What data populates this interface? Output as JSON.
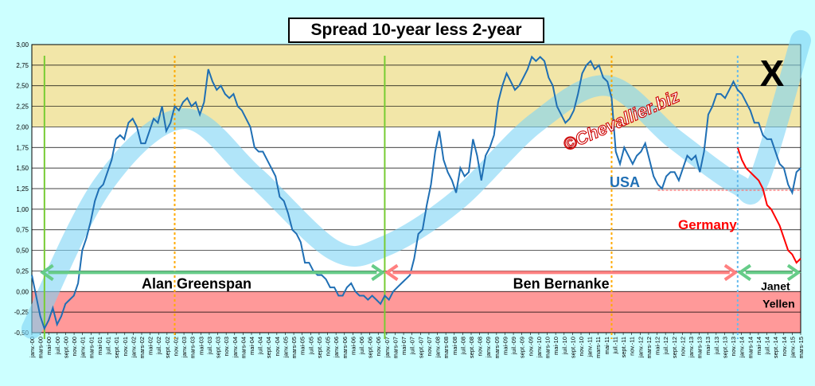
{
  "chart_data": {
    "type": "line",
    "title": "Spread 10-year less 2-year",
    "ylim": [
      -0.5,
      3.0
    ],
    "yticks": [
      "3,00",
      "2,75",
      "2,50",
      "2,25",
      "2,00",
      "1,75",
      "1,50",
      "1,25",
      "1,00",
      "0,75",
      "0,50",
      "0,25",
      "0,00",
      "-0,25",
      "-0,50"
    ],
    "ytick_values": [
      3.0,
      2.75,
      2.5,
      2.25,
      2.0,
      1.75,
      1.5,
      1.25,
      1.0,
      0.75,
      0.5,
      0.25,
      0.0,
      -0.25,
      -0.5
    ],
    "bands": [
      {
        "from": 2.0,
        "to": 3.0,
        "color": "#f2e6a8"
      },
      {
        "from": 0.0,
        "to": -0.5,
        "color": "#ff9999"
      }
    ],
    "xticks": [
      "janv.-00",
      "mars-00",
      "mai-00",
      "juil.-00",
      "sept.-00",
      "nov.-00",
      "janv.-01",
      "mars-01",
      "mai-01",
      "juil.-01",
      "sept.-01",
      "nov.-01",
      "janv.-02",
      "mars-02",
      "mai-02",
      "juil.-02",
      "sept.-02",
      "nov.-02",
      "janv.-03",
      "mars-03",
      "mai-03",
      "juil.-03",
      "sept.-03",
      "nov.-03",
      "janv.-04",
      "mars-04",
      "mai-04",
      "juil.-04",
      "sept.-04",
      "nov.-04",
      "janv.-05",
      "mars-05",
      "mai-05",
      "juil.-05",
      "sept.-05",
      "nov.-05",
      "janv.-06",
      "mars-06",
      "mai-06",
      "juil.-06",
      "sept.-06",
      "nov.-06",
      "janv.-07",
      "mars-07",
      "mai-07",
      "juil.-07",
      "sept.-07",
      "nov.-07",
      "janv.-08",
      "mars-08",
      "mai-08",
      "juil.-08",
      "sept.-08",
      "nov.-08",
      "janv.-09",
      "mars-09",
      "mai-09",
      "juil.-09",
      "sept.-09",
      "nov.-09",
      "janv.-10",
      "mars-10",
      "mai-10",
      "juil.-10",
      "sept.-10",
      "nov.-10",
      "janv.-11",
      "mars-11",
      "mai-11",
      "juil.-11",
      "sept.-11",
      "nov.-11",
      "janv.-12",
      "mars-12",
      "mai-12",
      "juil.-12",
      "sept.-12",
      "nov.-12",
      "janv.-13",
      "mars-13",
      "mai-13",
      "juil.-13",
      "sept.-13",
      "nov.-13",
      "janv.-14",
      "mars-14",
      "mai-14",
      "juil.-14",
      "sept.-14",
      "nov.-14",
      "janv.-15",
      "mars-15"
    ],
    "series": [
      {
        "name": "USA",
        "color": "#1f6fb4",
        "label_color": "#1f6fb4",
        "points": [
          [
            "2000-01",
            0.2
          ],
          [
            "2000-02",
            -0.05
          ],
          [
            "2000-03",
            -0.3
          ],
          [
            "2000-04",
            -0.45
          ],
          [
            "2000-05",
            -0.35
          ],
          [
            "2000-06",
            -0.2
          ],
          [
            "2000-07",
            -0.4
          ],
          [
            "2000-08",
            -0.3
          ],
          [
            "2000-09",
            -0.15
          ],
          [
            "2000-10",
            -0.1
          ],
          [
            "2000-11",
            -0.05
          ],
          [
            "2000-12",
            0.1
          ],
          [
            "2001-01",
            0.5
          ],
          [
            "2001-02",
            0.65
          ],
          [
            "2001-03",
            0.85
          ],
          [
            "2001-04",
            1.1
          ],
          [
            "2001-05",
            1.25
          ],
          [
            "2001-06",
            1.3
          ],
          [
            "2001-07",
            1.45
          ],
          [
            "2001-08",
            1.6
          ],
          [
            "2001-09",
            1.85
          ],
          [
            "2001-10",
            1.9
          ],
          [
            "2001-11",
            1.85
          ],
          [
            "2001-12",
            2.05
          ],
          [
            "2002-01",
            2.1
          ],
          [
            "2002-02",
            2.0
          ],
          [
            "2002-03",
            1.8
          ],
          [
            "2002-04",
            1.8
          ],
          [
            "2002-05",
            1.95
          ],
          [
            "2002-06",
            2.1
          ],
          [
            "2002-07",
            2.05
          ],
          [
            "2002-08",
            2.25
          ],
          [
            "2002-09",
            1.95
          ],
          [
            "2002-10",
            2.05
          ],
          [
            "2002-11",
            2.25
          ],
          [
            "2002-12",
            2.2
          ],
          [
            "2003-01",
            2.3
          ],
          [
            "2003-02",
            2.35
          ],
          [
            "2003-03",
            2.25
          ],
          [
            "2003-04",
            2.3
          ],
          [
            "2003-05",
            2.15
          ],
          [
            "2003-06",
            2.3
          ],
          [
            "2003-07",
            2.7
          ],
          [
            "2003-08",
            2.55
          ],
          [
            "2003-09",
            2.45
          ],
          [
            "2003-10",
            2.5
          ],
          [
            "2003-11",
            2.4
          ],
          [
            "2003-12",
            2.35
          ],
          [
            "2004-01",
            2.4
          ],
          [
            "2004-02",
            2.25
          ],
          [
            "2004-03",
            2.2
          ],
          [
            "2004-04",
            2.1
          ],
          [
            "2004-05",
            2.0
          ],
          [
            "2004-06",
            1.75
          ],
          [
            "2004-07",
            1.7
          ],
          [
            "2004-08",
            1.7
          ],
          [
            "2004-09",
            1.6
          ],
          [
            "2004-10",
            1.5
          ],
          [
            "2004-11",
            1.4
          ],
          [
            "2004-12",
            1.15
          ],
          [
            "2005-01",
            1.1
          ],
          [
            "2005-02",
            0.95
          ],
          [
            "2005-03",
            0.75
          ],
          [
            "2005-04",
            0.7
          ],
          [
            "2005-05",
            0.6
          ],
          [
            "2005-06",
            0.35
          ],
          [
            "2005-07",
            0.35
          ],
          [
            "2005-08",
            0.25
          ],
          [
            "2005-09",
            0.2
          ],
          [
            "2005-10",
            0.2
          ],
          [
            "2005-11",
            0.15
          ],
          [
            "2005-12",
            0.05
          ],
          [
            "2006-01",
            0.05
          ],
          [
            "2006-02",
            -0.05
          ],
          [
            "2006-03",
            -0.05
          ],
          [
            "2006-04",
            0.05
          ],
          [
            "2006-05",
            0.1
          ],
          [
            "2006-06",
            0.0
          ],
          [
            "2006-07",
            -0.05
          ],
          [
            "2006-08",
            -0.05
          ],
          [
            "2006-09",
            -0.1
          ],
          [
            "2006-10",
            -0.05
          ],
          [
            "2006-11",
            -0.1
          ],
          [
            "2006-12",
            -0.15
          ],
          [
            "2007-01",
            -0.05
          ],
          [
            "2007-02",
            -0.1
          ],
          [
            "2007-03",
            0.0
          ],
          [
            "2007-04",
            0.05
          ],
          [
            "2007-05",
            0.1
          ],
          [
            "2007-06",
            0.15
          ],
          [
            "2007-07",
            0.2
          ],
          [
            "2007-08",
            0.4
          ],
          [
            "2007-09",
            0.7
          ],
          [
            "2007-10",
            0.75
          ],
          [
            "2007-11",
            1.05
          ],
          [
            "2007-12",
            1.3
          ],
          [
            "2008-01",
            1.7
          ],
          [
            "2008-02",
            1.95
          ],
          [
            "2008-03",
            1.6
          ],
          [
            "2008-04",
            1.45
          ],
          [
            "2008-05",
            1.35
          ],
          [
            "2008-06",
            1.2
          ],
          [
            "2008-07",
            1.5
          ],
          [
            "2008-08",
            1.4
          ],
          [
            "2008-09",
            1.45
          ],
          [
            "2008-10",
            1.85
          ],
          [
            "2008-11",
            1.65
          ],
          [
            "2008-12",
            1.35
          ],
          [
            "2009-01",
            1.65
          ],
          [
            "2009-02",
            1.75
          ],
          [
            "2009-03",
            1.9
          ],
          [
            "2009-04",
            2.3
          ],
          [
            "2009-05",
            2.5
          ],
          [
            "2009-06",
            2.65
          ],
          [
            "2009-07",
            2.55
          ],
          [
            "2009-08",
            2.45
          ],
          [
            "2009-09",
            2.5
          ],
          [
            "2009-10",
            2.6
          ],
          [
            "2009-11",
            2.7
          ],
          [
            "2009-12",
            2.85
          ],
          [
            "2010-01",
            2.8
          ],
          [
            "2010-02",
            2.85
          ],
          [
            "2010-03",
            2.8
          ],
          [
            "2010-04",
            2.6
          ],
          [
            "2010-05",
            2.5
          ],
          [
            "2010-06",
            2.25
          ],
          [
            "2010-07",
            2.15
          ],
          [
            "2010-08",
            2.05
          ],
          [
            "2010-09",
            2.1
          ],
          [
            "2010-10",
            2.2
          ],
          [
            "2010-11",
            2.4
          ],
          [
            "2010-12",
            2.65
          ],
          [
            "2011-01",
            2.75
          ],
          [
            "2011-02",
            2.8
          ],
          [
            "2011-03",
            2.7
          ],
          [
            "2011-04",
            2.75
          ],
          [
            "2011-05",
            2.6
          ],
          [
            "2011-06",
            2.55
          ],
          [
            "2011-07",
            2.35
          ],
          [
            "2011-08",
            1.7
          ],
          [
            "2011-09",
            1.55
          ],
          [
            "2011-10",
            1.75
          ],
          [
            "2011-11",
            1.65
          ],
          [
            "2011-12",
            1.55
          ],
          [
            "2012-01",
            1.65
          ],
          [
            "2012-02",
            1.7
          ],
          [
            "2012-03",
            1.8
          ],
          [
            "2012-04",
            1.6
          ],
          [
            "2012-05",
            1.4
          ],
          [
            "2012-06",
            1.3
          ],
          [
            "2012-07",
            1.25
          ],
          [
            "2012-08",
            1.4
          ],
          [
            "2012-09",
            1.45
          ],
          [
            "2012-10",
            1.45
          ],
          [
            "2012-11",
            1.35
          ],
          [
            "2012-12",
            1.5
          ],
          [
            "2013-01",
            1.65
          ],
          [
            "2013-02",
            1.6
          ],
          [
            "2013-03",
            1.65
          ],
          [
            "2013-04",
            1.45
          ],
          [
            "2013-05",
            1.7
          ],
          [
            "2013-06",
            2.15
          ],
          [
            "2013-07",
            2.25
          ],
          [
            "2013-08",
            2.4
          ],
          [
            "2013-09",
            2.4
          ],
          [
            "2013-10",
            2.35
          ],
          [
            "2013-11",
            2.45
          ],
          [
            "2013-12",
            2.55
          ],
          [
            "2014-01",
            2.45
          ],
          [
            "2014-02",
            2.4
          ],
          [
            "2014-03",
            2.3
          ],
          [
            "2014-04",
            2.2
          ],
          [
            "2014-05",
            2.05
          ],
          [
            "2014-06",
            2.05
          ],
          [
            "2014-07",
            1.9
          ],
          [
            "2014-08",
            1.85
          ],
          [
            "2014-09",
            1.85
          ],
          [
            "2014-10",
            1.7
          ],
          [
            "2014-11",
            1.55
          ],
          [
            "2014-12",
            1.5
          ],
          [
            "2015-01",
            1.3
          ],
          [
            "2015-02",
            1.2
          ],
          [
            "2015-03",
            1.45
          ],
          [
            "2015-04",
            1.5
          ]
        ]
      },
      {
        "name": "Germany",
        "color": "#ff0000",
        "label_color": "#ff0000",
        "points": [
          [
            "2014-01",
            1.75
          ],
          [
            "2014-02",
            1.6
          ],
          [
            "2014-03",
            1.5
          ],
          [
            "2014-04",
            1.45
          ],
          [
            "2014-05",
            1.4
          ],
          [
            "2014-06",
            1.35
          ],
          [
            "2014-07",
            1.25
          ],
          [
            "2014-08",
            1.05
          ],
          [
            "2014-09",
            1.0
          ],
          [
            "2014-10",
            0.9
          ],
          [
            "2014-11",
            0.8
          ],
          [
            "2014-12",
            0.65
          ],
          [
            "2015-01",
            0.5
          ],
          [
            "2015-02",
            0.45
          ],
          [
            "2015-03",
            0.35
          ],
          [
            "2015-04",
            0.4
          ]
        ]
      }
    ],
    "trend_wave": {
      "name": "",
      "color": "#7dd3f5",
      "points": [
        [
          "2000-01",
          -0.45
        ],
        [
          "2001-06",
          1.3
        ],
        [
          "2003-01",
          2.1
        ],
        [
          "2004-06",
          1.4
        ],
        [
          "2006-01",
          0.5
        ],
        [
          "2007-01",
          0.55
        ],
        [
          "2008-06",
          1.1
        ],
        [
          "2010-01",
          2.05
        ],
        [
          "2011-06",
          2.5
        ],
        [
          "2012-10",
          1.85
        ],
        [
          "2014-01",
          1.3
        ],
        [
          "2014-06",
          1.35
        ],
        [
          "2015-04",
          3.05
        ]
      ]
    },
    "annotations": [
      {
        "text": "Alan  Greenspan",
        "from": "2000-03",
        "to": "2007-01",
        "y": 0.25,
        "arrow_color": "#66cc88",
        "text_color": "#000000"
      },
      {
        "text": "Ben  Bernanke",
        "from": "2007-01",
        "to": "2014-01",
        "y": 0.25,
        "arrow_color": "#ff8080",
        "text_color": "#000000"
      },
      {
        "text": "Janet",
        "text2": "Yellen",
        "from": "2014-01",
        "to": "2015-04",
        "y": 0.25,
        "arrow_color": "#66cc88",
        "text_color": "#000000"
      }
    ],
    "vlines": [
      {
        "date": "2000-04",
        "color": "#77cc33"
      },
      {
        "date": "2002-11",
        "color": "#ffaa00"
      },
      {
        "date": "2007-01",
        "color": "#77cc33"
      },
      {
        "date": "2011-07",
        "color": "#ffaa00"
      },
      {
        "date": "2014-01",
        "color": "#66bbee"
      }
    ],
    "hlines": [
      {
        "from": "2012-06",
        "to": "2015-04",
        "y": 1.23,
        "color": "#ff6666"
      }
    ],
    "watermark": "©Chevallier.biz",
    "crossed_mark": "X"
  }
}
